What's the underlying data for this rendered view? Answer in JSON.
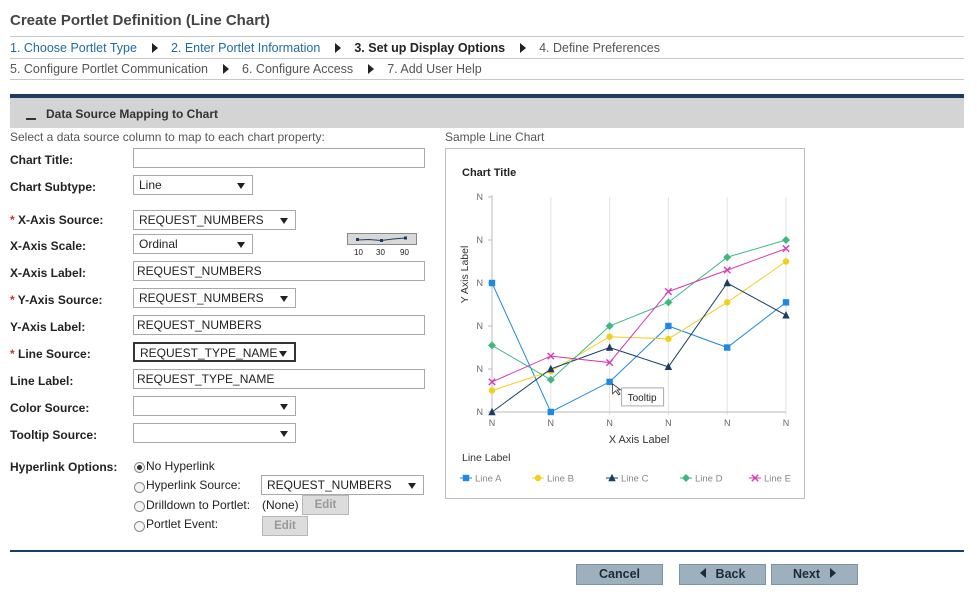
{
  "page": {
    "title": "Create Portlet Definition (Line Chart)"
  },
  "wizard": {
    "row1": [
      {
        "label": "1. Choose Portlet Type",
        "state": "link"
      },
      {
        "label": "2. Enter Portlet Information",
        "state": "link"
      },
      {
        "label": "3. Set up Display Options",
        "state": "current"
      },
      {
        "label": "4. Define Preferences",
        "state": "pending"
      }
    ],
    "row2": [
      {
        "label": "5. Configure Portlet Communication",
        "state": "pending"
      },
      {
        "label": "6. Configure Access",
        "state": "pending"
      },
      {
        "label": "7. Add User Help",
        "state": "pending"
      }
    ]
  },
  "section": {
    "title": "Data Source Mapping to Chart",
    "instructions": "Select a data source column to map to each chart property:"
  },
  "form": {
    "chart_title": {
      "label": "Chart Title:",
      "value": ""
    },
    "chart_subtype": {
      "label": "Chart Subtype:",
      "value": "Line"
    },
    "x_axis_source": {
      "label": "X-Axis Source:",
      "value": "REQUEST_NUMBERS",
      "required": true
    },
    "x_axis_scale": {
      "label": "X-Axis Scale:",
      "value": "Ordinal",
      "scale_ticks": [
        "10",
        "30",
        "90"
      ]
    },
    "x_axis_label": {
      "label": "X-Axis Label:",
      "value": "REQUEST_NUMBERS"
    },
    "y_axis_source": {
      "label": "Y-Axis Source:",
      "value": "REQUEST_NUMBERS",
      "required": true
    },
    "y_axis_label": {
      "label": "Y-Axis Label:",
      "value": "REQUEST_NUMBERS"
    },
    "line_source": {
      "label": "Line Source:",
      "value": "REQUEST_TYPE_NAME",
      "required": true
    },
    "line_label": {
      "label": "Line Label:",
      "value": "REQUEST_TYPE_NAME"
    },
    "color_source": {
      "label": "Color Source:",
      "value": ""
    },
    "tooltip_source": {
      "label": "Tooltip Source:",
      "value": ""
    },
    "required_marker": "*"
  },
  "hyperlink": {
    "label": "Hyperlink Options:",
    "options": {
      "no_hyperlink": "No Hyperlink",
      "hyperlink_source": "Hyperlink Source:",
      "drilldown": "Drilldown to Portlet:",
      "portlet_event": "Portlet Event:"
    },
    "selected": "no_hyperlink",
    "hyperlink_source_value": "REQUEST_NUMBERS",
    "drilldown_value": "(None)",
    "edit_label": "Edit"
  },
  "sample": {
    "label": "Sample Line Chart",
    "tooltip_text": "Tooltip"
  },
  "chart_data": {
    "type": "line",
    "title": "Chart Title",
    "xlabel": "X Axis Label",
    "ylabel": "Y Axis Label",
    "legend_title": "Line Label",
    "categories": [
      "N",
      "N",
      "N",
      "N",
      "N",
      "N"
    ],
    "y_ticks": [
      "N",
      "N",
      "N",
      "N",
      "N",
      "N"
    ],
    "ylim": [
      0,
      5
    ],
    "grid": "vertical",
    "legend_position": "bottom",
    "series": [
      {
        "name": "Line A",
        "color": "#1e88e5",
        "marker": "square",
        "values": [
          3.0,
          0.0,
          0.7,
          2.0,
          1.5,
          2.55
        ]
      },
      {
        "name": "Line B",
        "color": "#f2cf1a",
        "marker": "circle",
        "values": [
          0.5,
          0.95,
          1.75,
          1.7,
          2.55,
          3.5
        ]
      },
      {
        "name": "Line C",
        "color": "#1a3d66",
        "marker": "triangle",
        "values": [
          0.0,
          1.0,
          1.5,
          1.05,
          3.0,
          2.25
        ]
      },
      {
        "name": "Line D",
        "color": "#3db880",
        "marker": "diamond",
        "values": [
          1.55,
          0.75,
          2.0,
          2.55,
          3.6,
          4.0
        ]
      },
      {
        "name": "Line E",
        "color": "#d63ab5",
        "marker": "x",
        "values": [
          0.7,
          1.3,
          1.15,
          2.8,
          3.3,
          3.8
        ]
      }
    ]
  }
}
